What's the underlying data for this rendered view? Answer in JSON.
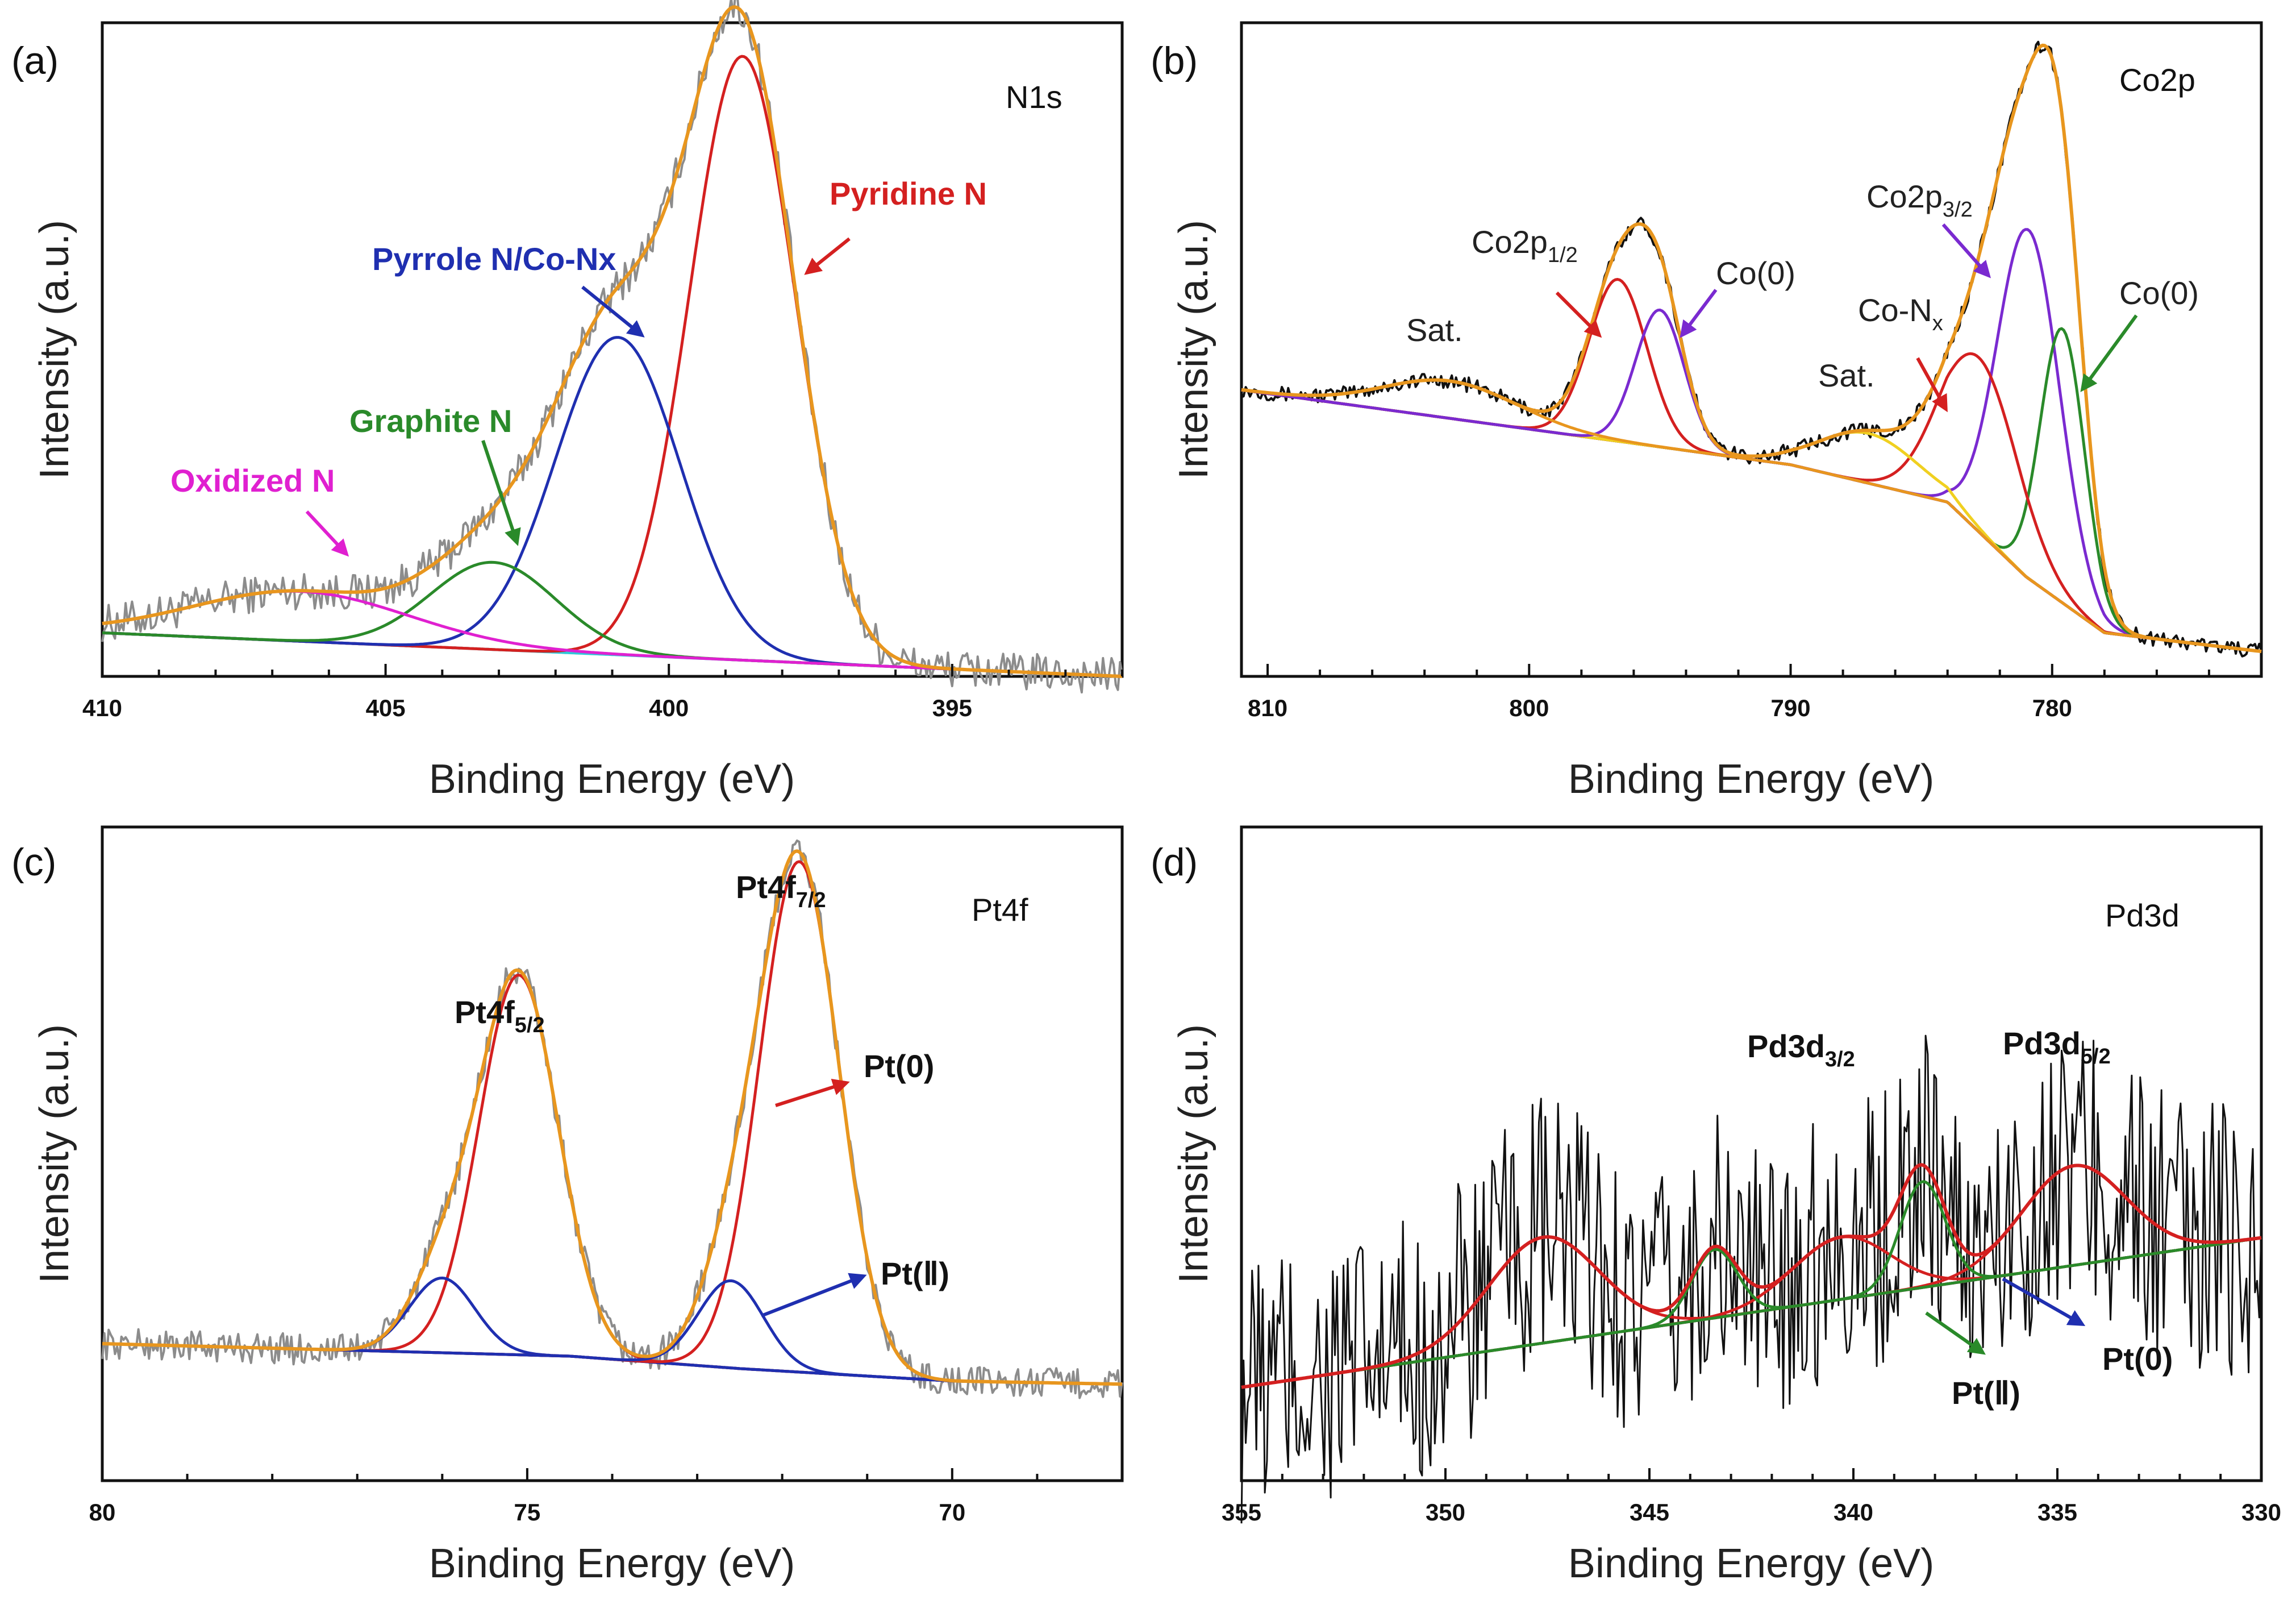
{
  "colors": {
    "raw_gray": "#8c8c8c",
    "raw_black": "#111111",
    "envelope": "#e8961e",
    "red": "#d42020",
    "blue": "#1f2fb0",
    "green": "#2a8a2a",
    "magenta": "#e020d0",
    "cyan": "#30c8d8",
    "purple": "#7a2ad0",
    "yellow": "#f0d020",
    "navy": "#1a1a7a"
  },
  "chart_data": [
    {
      "id": "a",
      "type": "line",
      "panel_label": "(a)",
      "region_label": "N1s",
      "xlabel": "Binding Energy (eV)",
      "ylabel": "Intensity (a.u.)",
      "xlim": [
        410,
        392
      ],
      "ylim": [
        0,
        1.05
      ],
      "xticks": [
        410,
        405,
        400,
        395
      ],
      "xtick_labels": [
        "410",
        "405",
        "400",
        "395"
      ],
      "baseline": [
        [
          410,
          0.07
        ],
        [
          392,
          0.0
        ]
      ],
      "peaks": [
        {
          "name": "Pyridine N",
          "center": 398.7,
          "height": 0.97,
          "fwhm": 2.2
        },
        {
          "name": "Pyrrole N/Co-Nx",
          "center": 400.9,
          "height": 0.51,
          "fwhm": 2.6
        },
        {
          "name": "Graphite N",
          "center": 403.1,
          "height": 0.14,
          "fwhm": 2.6
        },
        {
          "name": "Oxidized N",
          "center": 406.5,
          "height": 0.08,
          "fwhm": 4.5
        }
      ],
      "noise": 0.03,
      "annotations": [
        {
          "text": "Pyridine N",
          "color": "#d42020"
        },
        {
          "text": "Pyrrole N/Co-Nx",
          "color": "#1f2fb0"
        },
        {
          "text": "Graphite N",
          "color": "#2a8a2a"
        },
        {
          "text": "Oxidized N",
          "color": "#e020d0"
        }
      ]
    },
    {
      "id": "b",
      "type": "line",
      "panel_label": "(b)",
      "region_label": "Co2p",
      "xlabel": "Binding Energy (eV)",
      "ylabel": "Intensity (a.u.)",
      "xlim": [
        811,
        772
      ],
      "ylim": [
        0,
        1.05
      ],
      "xticks": [
        810,
        800,
        790,
        780
      ],
      "xtick_labels": [
        "810",
        "800",
        "790",
        "780"
      ],
      "baseline": [
        [
          811,
          0.46
        ],
        [
          790,
          0.34
        ],
        [
          784,
          0.28
        ],
        [
          781,
          0.16
        ],
        [
          778,
          0.07
        ],
        [
          772,
          0.04
        ]
      ],
      "peaks": [
        {
          "name": "Co2p3/2",
          "center": 780.9,
          "height": 0.56,
          "fwhm": 2.8
        },
        {
          "name": "Co(0)",
          "center": 779.6,
          "height": 0.44,
          "fwhm": 2.0
        },
        {
          "name": "Co-Nx",
          "center": 782.8,
          "height": 0.28,
          "fwhm": 3.5
        },
        {
          "name": "Sat.",
          "center": 787.0,
          "height": 0.08,
          "fwhm": 4.5
        },
        {
          "name": "Co2p1/2",
          "center": 796.6,
          "height": 0.26,
          "fwhm": 2.6
        },
        {
          "name": "Co(0)",
          "center": 795.0,
          "height": 0.22,
          "fwhm": 2.2
        },
        {
          "name": "Sat.",
          "center": 803.0,
          "height": 0.06,
          "fwhm": 6.0
        }
      ],
      "noise": 0.012,
      "annotations": [
        {
          "text": "Sat.",
          "color": "#222222"
        },
        {
          "text": "Co2p",
          "sub": "1/2",
          "color": "#222222"
        },
        {
          "text": "Co(0)",
          "color": "#222222"
        },
        {
          "text": "Sat.",
          "color": "#222222"
        },
        {
          "text": "Co2p",
          "sub": "3/2",
          "color": "#222222"
        },
        {
          "text": "Co-N",
          "sub": "x",
          "color": "#222222"
        },
        {
          "text": "Co(0)",
          "color": "#222222"
        }
      ]
    },
    {
      "id": "c",
      "type": "line",
      "panel_label": "(c)",
      "region_label": "Pt4f",
      "xlabel": "Binding Energy (eV)",
      "ylabel": "Intensity (a.u.)",
      "xlim": [
        80,
        68
      ],
      "ylim": [
        0,
        1.05
      ],
      "xticks": [
        80,
        75,
        70
      ],
      "xtick_labels": [
        "80",
        "75",
        "70"
      ],
      "baseline": [
        [
          80,
          0.22
        ],
        [
          74.5,
          0.2
        ],
        [
          72.5,
          0.18
        ],
        [
          70,
          0.16
        ],
        [
          68,
          0.155
        ]
      ],
      "peaks": [
        {
          "name": "Pt4f5/2",
          "center": 75.1,
          "height": 0.61,
          "fwhm": 1.1
        },
        {
          "name": "Pt(II)",
          "center": 76.0,
          "height": 0.12,
          "fwhm": 0.9
        },
        {
          "name": "Pt4f7/2",
          "center": 71.8,
          "height": 0.82,
          "fwhm": 1.1
        },
        {
          "name": "Pt(II)",
          "center": 72.6,
          "height": 0.14,
          "fwhm": 0.9
        }
      ],
      "noise": 0.025,
      "annotations": [
        {
          "text": "Pt4f",
          "sub": "5/2",
          "color": "#111111"
        },
        {
          "text": "Pt4f",
          "sub": "7/2",
          "color": "#111111"
        },
        {
          "text": "Pt(0)",
          "color": "#111111"
        },
        {
          "text": "Pt(Ⅱ)",
          "color": "#111111"
        }
      ]
    },
    {
      "id": "d",
      "type": "line",
      "panel_label": "(d)",
      "region_label": "Pd3d",
      "xlabel": "Binding Energy (eV)",
      "ylabel": "Intensity (a.u.)",
      "xlim": [
        355,
        330
      ],
      "ylim": [
        0,
        1.05
      ],
      "xticks": [
        355,
        350,
        345,
        340,
        335,
        330
      ],
      "xtick_labels": [
        "355",
        "350",
        "345",
        "340",
        "335",
        "330"
      ],
      "baseline": [
        [
          355,
          0.15
        ],
        [
          330,
          0.39
        ]
      ],
      "peaks": [
        {
          "name": "Pd3d5/2",
          "center": 334.6,
          "height": 0.16,
          "fwhm": 3.0
        },
        {
          "name": "Pd3d3/2",
          "center": 347.6,
          "height": 0.17,
          "fwhm": 3.2
        },
        {
          "name": "Pd3d3/2",
          "center": 340.3,
          "height": 0.1,
          "fwhm": 2.8
        },
        {
          "name": "Pt(II)",
          "center": 338.3,
          "height": 0.17,
          "fwhm": 1.3
        },
        {
          "name": "Pt(II)",
          "center": 343.4,
          "height": 0.11,
          "fwhm": 1.3
        }
      ],
      "noise": 0.14,
      "annotations": [
        {
          "text": "Pd3d",
          "sub": "3/2",
          "color": "#111111"
        },
        {
          "text": "Pd3d",
          "sub": "5/2",
          "color": "#111111"
        },
        {
          "text": "Pt(Ⅱ)",
          "color": "#111111"
        },
        {
          "text": "Pt(0)",
          "color": "#111111"
        }
      ]
    }
  ]
}
